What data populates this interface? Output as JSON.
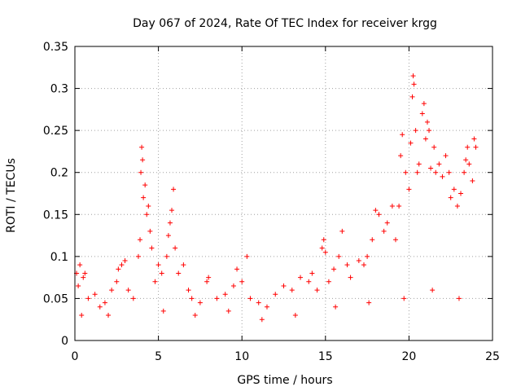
{
  "chart_data": {
    "type": "scatter",
    "title": "Day 067 of 2024, Rate Of TEC Index for receiver krgg",
    "xlabel": "GPS time / hours",
    "ylabel": "ROTI / TECUs",
    "xlim": [
      0,
      25
    ],
    "ylim": [
      0,
      0.35
    ],
    "xticks": [
      0,
      5,
      10,
      15,
      20,
      25
    ],
    "yticks": [
      0,
      0.05,
      0.1,
      0.15,
      0.2,
      0.25,
      0.3,
      0.35
    ],
    "xtick_labels": [
      "0",
      "5",
      "10",
      "15",
      "20",
      "25"
    ],
    "ytick_labels": [
      "0",
      "0.05",
      "0.1",
      "0.15",
      "0.2",
      "0.25",
      "0.3",
      "0.35"
    ],
    "grid": true,
    "marker": "+",
    "marker_color": "#ff0000",
    "points": [
      [
        0.1,
        0.08
      ],
      [
        0.2,
        0.065
      ],
      [
        0.3,
        0.09
      ],
      [
        0.5,
        0.075
      ],
      [
        0.6,
        0.08
      ],
      [
        0.8,
        0.05
      ],
      [
        1.2,
        0.055
      ],
      [
        1.5,
        0.04
      ],
      [
        1.8,
        0.045
      ],
      [
        2.2,
        0.06
      ],
      [
        2.5,
        0.07
      ],
      [
        2.6,
        0.085
      ],
      [
        2.8,
        0.09
      ],
      [
        3.0,
        0.095
      ],
      [
        3.2,
        0.06
      ],
      [
        3.5,
        0.05
      ],
      [
        3.8,
        0.1
      ],
      [
        3.9,
        0.12
      ],
      [
        3.95,
        0.2
      ],
      [
        4.0,
        0.23
      ],
      [
        4.05,
        0.215
      ],
      [
        4.1,
        0.17
      ],
      [
        4.2,
        0.185
      ],
      [
        4.3,
        0.15
      ],
      [
        4.4,
        0.16
      ],
      [
        4.5,
        0.13
      ],
      [
        4.6,
        0.11
      ],
      [
        4.8,
        0.07
      ],
      [
        5.0,
        0.09
      ],
      [
        5.2,
        0.08
      ],
      [
        5.5,
        0.1
      ],
      [
        5.6,
        0.125
      ],
      [
        5.7,
        0.14
      ],
      [
        5.8,
        0.155
      ],
      [
        5.9,
        0.18
      ],
      [
        6.0,
        0.11
      ],
      [
        6.2,
        0.08
      ],
      [
        6.5,
        0.09
      ],
      [
        6.8,
        0.06
      ],
      [
        7.0,
        0.05
      ],
      [
        7.5,
        0.045
      ],
      [
        7.9,
        0.07
      ],
      [
        8.0,
        0.075
      ],
      [
        8.5,
        0.05
      ],
      [
        9.0,
        0.055
      ],
      [
        9.5,
        0.065
      ],
      [
        9.7,
        0.085
      ],
      [
        10.0,
        0.07
      ],
      [
        10.3,
        0.1
      ],
      [
        10.5,
        0.05
      ],
      [
        11.0,
        0.045
      ],
      [
        11.5,
        0.04
      ],
      [
        12.0,
        0.055
      ],
      [
        12.5,
        0.065
      ],
      [
        13.0,
        0.06
      ],
      [
        13.5,
        0.075
      ],
      [
        14.0,
        0.07
      ],
      [
        14.2,
        0.08
      ],
      [
        14.5,
        0.06
      ],
      [
        14.8,
        0.11
      ],
      [
        14.9,
        0.12
      ],
      [
        15.0,
        0.105
      ],
      [
        15.2,
        0.07
      ],
      [
        15.5,
        0.085
      ],
      [
        15.8,
        0.1
      ],
      [
        16.0,
        0.13
      ],
      [
        16.3,
        0.09
      ],
      [
        16.5,
        0.075
      ],
      [
        17.0,
        0.095
      ],
      [
        17.3,
        0.09
      ],
      [
        17.5,
        0.1
      ],
      [
        17.8,
        0.12
      ],
      [
        18.0,
        0.155
      ],
      [
        18.2,
        0.15
      ],
      [
        18.5,
        0.13
      ],
      [
        18.7,
        0.14
      ],
      [
        19.0,
        0.16
      ],
      [
        19.2,
        0.12
      ],
      [
        19.4,
        0.16
      ],
      [
        19.5,
        0.22
      ],
      [
        19.6,
        0.245
      ],
      [
        19.8,
        0.2
      ],
      [
        20.0,
        0.18
      ],
      [
        20.1,
        0.235
      ],
      [
        20.2,
        0.29
      ],
      [
        20.25,
        0.315
      ],
      [
        20.3,
        0.305
      ],
      [
        20.4,
        0.25
      ],
      [
        20.5,
        0.2
      ],
      [
        20.6,
        0.21
      ],
      [
        20.8,
        0.27
      ],
      [
        20.9,
        0.282
      ],
      [
        21.0,
        0.24
      ],
      [
        21.1,
        0.26
      ],
      [
        21.2,
        0.25
      ],
      [
        21.3,
        0.205
      ],
      [
        21.5,
        0.23
      ],
      [
        21.6,
        0.2
      ],
      [
        21.8,
        0.21
      ],
      [
        22.0,
        0.195
      ],
      [
        22.2,
        0.22
      ],
      [
        22.4,
        0.2
      ],
      [
        22.5,
        0.17
      ],
      [
        22.7,
        0.18
      ],
      [
        22.9,
        0.16
      ],
      [
        23.1,
        0.175
      ],
      [
        23.3,
        0.2
      ],
      [
        23.4,
        0.215
      ],
      [
        23.5,
        0.23
      ],
      [
        23.6,
        0.21
      ],
      [
        23.8,
        0.19
      ],
      [
        23.9,
        0.24
      ],
      [
        24.0,
        0.23
      ],
      [
        0.4,
        0.03
      ],
      [
        2.0,
        0.03
      ],
      [
        5.3,
        0.035
      ],
      [
        7.2,
        0.03
      ],
      [
        9.2,
        0.035
      ],
      [
        11.2,
        0.025
      ],
      [
        13.2,
        0.03
      ],
      [
        15.6,
        0.04
      ],
      [
        17.6,
        0.045
      ],
      [
        19.7,
        0.05
      ],
      [
        21.4,
        0.06
      ],
      [
        23.0,
        0.05
      ]
    ]
  }
}
